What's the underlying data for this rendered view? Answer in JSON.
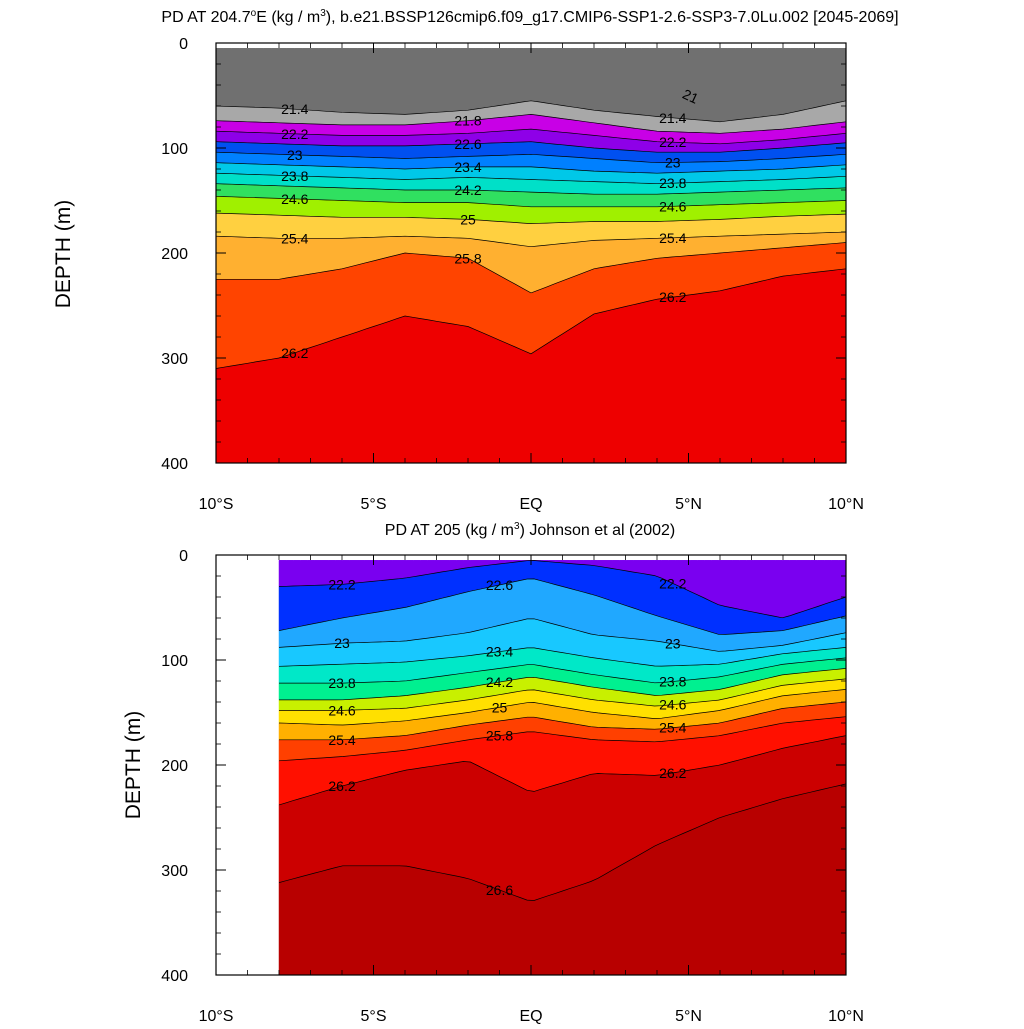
{
  "chart_data": [
    {
      "type": "contour",
      "title_main": "PD AT 204.7",
      "title_deg": "o",
      "title_mid": "E (kg / m",
      "title_sup": "3",
      "title_end": "), b.e21.BSSP126cmip6.f09_g17.CMIP6-SSP1-2.6-SSP3-7.0Lu.002 [2045-2069]",
      "ylabel": "DEPTH (m)",
      "xlim": [
        -10,
        10
      ],
      "ylim": [
        400,
        0
      ],
      "y_ticks": [
        "0",
        "100",
        "200",
        "300",
        "400"
      ],
      "x_ticks": [
        "10°S",
        "5°S",
        "EQ",
        "5°N",
        "10°N"
      ],
      "data_xlim": [
        -10,
        10
      ],
      "levels": [
        21.4,
        21.8,
        22.2,
        22.6,
        23,
        23.4,
        23.8,
        24.2,
        24.6,
        25,
        25.4,
        25.8,
        26.2
      ],
      "isopycnal_depths": {
        "lat": [
          -10,
          -8,
          -6,
          -4,
          -2,
          0,
          2,
          4,
          6,
          8,
          10
        ],
        "21.4": [
          60,
          62,
          66,
          68,
          64,
          55,
          64,
          70,
          75,
          68,
          55
        ],
        "21.8": [
          74,
          76,
          78,
          78,
          74,
          68,
          76,
          84,
          86,
          82,
          75
        ],
        "22.2": [
          84,
          86,
          88,
          88,
          86,
          82,
          88,
          94,
          96,
          92,
          86
        ],
        "22.6": [
          94,
          96,
          98,
          98,
          96,
          94,
          100,
          104,
          104,
          100,
          95
        ],
        "23": [
          104,
          106,
          108,
          110,
          108,
          106,
          110,
          114,
          113,
          110,
          106
        ],
        "23.4": [
          114,
          116,
          118,
          120,
          118,
          118,
          122,
          124,
          122,
          120,
          116
        ],
        "23.8": [
          124,
          126,
          128,
          130,
          128,
          130,
          132,
          134,
          132,
          130,
          127
        ],
        "24.2": [
          134,
          136,
          138,
          140,
          140,
          142,
          144,
          144,
          142,
          140,
          138
        ],
        "24.6": [
          146,
          148,
          150,
          152,
          152,
          156,
          156,
          156,
          154,
          152,
          150
        ],
        "25": [
          162,
          164,
          166,
          166,
          168,
          172,
          170,
          170,
          168,
          165,
          163
        ],
        "25.4": [
          184,
          186,
          186,
          184,
          186,
          194,
          188,
          186,
          184,
          182,
          180
        ],
        "25.8": [
          225,
          225,
          215,
          200,
          205,
          238,
          215,
          205,
          200,
          195,
          190
        ],
        "26.2": [
          310,
          300,
          280,
          260,
          270,
          296,
          258,
          244,
          236,
          222,
          215
        ]
      },
      "contour_labels": [
        "21.4",
        "21.8",
        "22.2",
        "22.6",
        "23",
        "23.4",
        "23.8",
        "24.2",
        "24.6",
        "25",
        "25.4",
        "25.8",
        "26.2",
        "21"
      ]
    },
    {
      "type": "contour",
      "title_main": "PD AT 205 (kg / m",
      "title_sup": "3",
      "title_end": ") Johnson et al (2002)",
      "ylabel": "DEPTH (m)",
      "xlim": [
        -10,
        10
      ],
      "ylim": [
        400,
        0
      ],
      "y_ticks": [
        "0",
        "100",
        "200",
        "300",
        "400"
      ],
      "x_ticks": [
        "10°S",
        "5°S",
        "EQ",
        "5°N",
        "10°N"
      ],
      "data_xlim": [
        -8,
        10
      ],
      "levels": [
        22.2,
        22.6,
        23,
        23.4,
        23.8,
        24.2,
        24.6,
        25,
        25.4,
        25.8,
        26.2,
        26.6
      ],
      "isopycnal_depths": {
        "lat": [
          -8,
          -6,
          -4,
          -2,
          0,
          2,
          4,
          6,
          8,
          10
        ],
        "22.2": [
          30,
          28,
          22,
          12,
          5,
          10,
          20,
          48,
          60,
          40
        ],
        "22.6": [
          72,
          60,
          50,
          35,
          22,
          38,
          58,
          76,
          72,
          58
        ],
        "23": [
          88,
          84,
          82,
          74,
          60,
          76,
          82,
          92,
          86,
          74
        ],
        "23.4": [
          106,
          104,
          102,
          96,
          88,
          98,
          106,
          104,
          94,
          88
        ],
        "23.8": [
          122,
          122,
          120,
          112,
          104,
          114,
          122,
          116,
          104,
          98
        ],
        "24.2": [
          138,
          138,
          134,
          126,
          116,
          126,
          134,
          128,
          114,
          108
        ],
        "24.6": [
          148,
          148,
          146,
          138,
          128,
          138,
          144,
          138,
          124,
          118
        ],
        "25": [
          160,
          162,
          158,
          150,
          140,
          150,
          156,
          148,
          134,
          128
        ],
        "25.4": [
          176,
          176,
          172,
          162,
          154,
          164,
          166,
          160,
          146,
          140
        ],
        "25.8": [
          196,
          192,
          186,
          176,
          168,
          176,
          178,
          172,
          160,
          154
        ],
        "26.2": [
          238,
          220,
          205,
          196,
          226,
          208,
          210,
          200,
          184,
          172
        ],
        "26.6": [
          312,
          296,
          296,
          308,
          330,
          310,
          276,
          250,
          232,
          218
        ]
      },
      "contour_labels": [
        "22.2",
        "22.6",
        "23",
        "23.4",
        "23.8",
        "24.2",
        "24.6",
        "25",
        "25.4",
        "25.8",
        "26.2",
        "26.6"
      ]
    }
  ],
  "palette": {
    "top": [
      "#707070",
      "#a8a8a8",
      "#ff00ff",
      "#c800e6",
      "#8e00e8",
      "#2020e8",
      "#0050f0",
      "#0080ff",
      "#00a8f0",
      "#00c8e8",
      "#00e0c8",
      "#00e8a0",
      "#30e060",
      "#a0f000",
      "#f8f000",
      "#ffd040",
      "#ffb030",
      "#ff8c00",
      "#ff4400",
      "#ee0000"
    ],
    "bottom": [
      "#7a00f0",
      "#0030ff",
      "#1070ff",
      "#20a8ff",
      "#18c8ff",
      "#10e0f0",
      "#00e8c8",
      "#00f090",
      "#20f040",
      "#c8f000",
      "#ffe000",
      "#ffb000",
      "#ff8000",
      "#ff4000",
      "#ff1000",
      "#e40000",
      "#cc0000",
      "#b80000"
    ]
  }
}
